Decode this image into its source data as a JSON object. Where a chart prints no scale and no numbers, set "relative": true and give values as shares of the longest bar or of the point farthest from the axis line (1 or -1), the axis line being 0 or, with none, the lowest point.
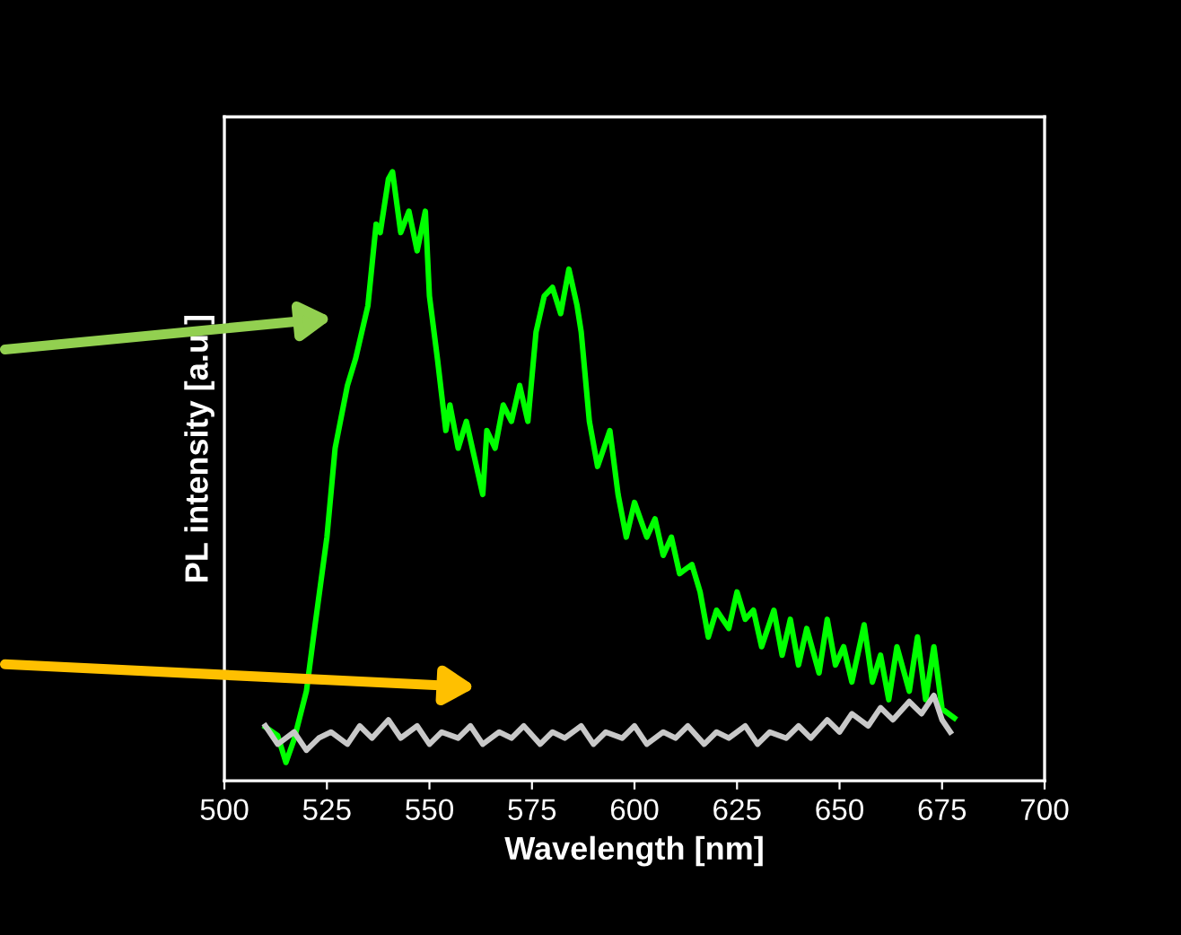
{
  "chart_data": {
    "type": "line",
    "relative": true,
    "xlabel": "Wavelength [nm]",
    "ylabel": "PL intensity [a.u.]",
    "xlim": [
      500,
      700
    ],
    "xticks": [
      500,
      525,
      550,
      575,
      600,
      625,
      650,
      675,
      700
    ],
    "tick_labels": "x",
    "grid": false,
    "legend": false,
    "line_style": "solid",
    "marker": "none",
    "series": [
      {
        "color": "#00ff00",
        "x": [
          510,
          513,
          515,
          517,
          520,
          522,
          525,
          527,
          530,
          532,
          535,
          537,
          538,
          540,
          541,
          543,
          545,
          547,
          549,
          550,
          552,
          554,
          555,
          557,
          559,
          561,
          563,
          564,
          566,
          568,
          570,
          572,
          574,
          576,
          578,
          580,
          582,
          584,
          586,
          587,
          589,
          591,
          594,
          596,
          598,
          600,
          603,
          605,
          607,
          609,
          611,
          614,
          616,
          618,
          620,
          623,
          625,
          627,
          629,
          631,
          634,
          636,
          638,
          640,
          642,
          645,
          647,
          649,
          651,
          653,
          656,
          658,
          660,
          662,
          664,
          667,
          669,
          671,
          673,
          675,
          678
        ],
        "values": [
          0.088,
          0.074,
          0.03,
          0.068,
          0.147,
          0.25,
          0.4,
          0.546,
          0.649,
          0.693,
          0.78,
          0.914,
          0.9,
          0.988,
          1.0,
          0.9,
          0.935,
          0.87,
          0.935,
          0.796,
          0.69,
          0.575,
          0.617,
          0.546,
          0.59,
          0.53,
          0.47,
          0.575,
          0.546,
          0.617,
          0.59,
          0.649,
          0.59,
          0.737,
          0.796,
          0.81,
          0.767,
          0.84,
          0.78,
          0.737,
          0.59,
          0.516,
          0.575,
          0.47,
          0.4,
          0.457,
          0.4,
          0.43,
          0.37,
          0.4,
          0.34,
          0.355,
          0.31,
          0.236,
          0.28,
          0.25,
          0.31,
          0.265,
          0.28,
          0.22,
          0.28,
          0.206,
          0.265,
          0.19,
          0.25,
          0.177,
          0.265,
          0.19,
          0.22,
          0.162,
          0.256,
          0.162,
          0.206,
          0.133,
          0.22,
          0.147,
          0.236,
          0.133,
          0.22,
          0.118,
          0.103
        ]
      },
      {
        "color": "#c8c8c8",
        "x": [
          510,
          513,
          517,
          520,
          523,
          526,
          530,
          533,
          536,
          540,
          543,
          547,
          550,
          553,
          557,
          560,
          563,
          567,
          570,
          573,
          577,
          580,
          583,
          587,
          590,
          593,
          597,
          600,
          603,
          607,
          610,
          613,
          617,
          620,
          623,
          627,
          630,
          633,
          637,
          640,
          643,
          647,
          650,
          653,
          657,
          660,
          663,
          667,
          670,
          673,
          675,
          677
        ],
        "values": [
          0.09,
          0.06,
          0.08,
          0.05,
          0.07,
          0.08,
          0.06,
          0.09,
          0.07,
          0.1,
          0.07,
          0.09,
          0.06,
          0.08,
          0.07,
          0.09,
          0.06,
          0.08,
          0.07,
          0.09,
          0.06,
          0.08,
          0.07,
          0.09,
          0.06,
          0.08,
          0.07,
          0.09,
          0.06,
          0.08,
          0.07,
          0.09,
          0.06,
          0.08,
          0.07,
          0.09,
          0.06,
          0.08,
          0.07,
          0.09,
          0.07,
          0.1,
          0.08,
          0.11,
          0.09,
          0.12,
          0.1,
          0.13,
          0.11,
          0.14,
          0.1,
          0.08
        ]
      }
    ]
  }
}
